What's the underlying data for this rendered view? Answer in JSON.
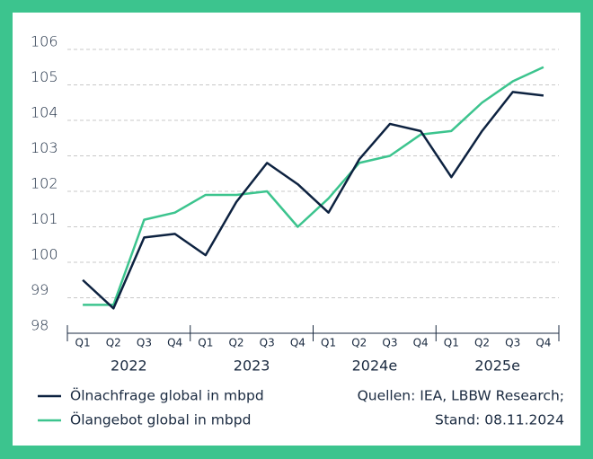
{
  "chart_data": {
    "type": "line",
    "categories": [
      "Q1",
      "Q2",
      "Q3",
      "Q4",
      "Q1",
      "Q2",
      "Q3",
      "Q4",
      "Q1",
      "Q2",
      "Q3",
      "Q4",
      "Q1",
      "Q2",
      "Q3",
      "Q4"
    ],
    "x_groups": [
      "2022",
      "2023",
      "2024e",
      "2025e"
    ],
    "series": [
      {
        "name": "Ölnachfrage global in mbpd",
        "color": "#0d2240",
        "values": [
          99.5,
          98.7,
          100.7,
          100.8,
          100.2,
          101.7,
          102.8,
          102.2,
          101.4,
          102.9,
          103.9,
          103.7,
          102.4,
          103.7,
          104.8,
          104.7
        ]
      },
      {
        "name": "Ölangebot global in mbpd",
        "color": "#3cc48e",
        "values": [
          98.8,
          98.8,
          101.2,
          101.4,
          101.9,
          101.9,
          102.0,
          101.0,
          101.8,
          102.8,
          103.0,
          103.6,
          103.7,
          104.5,
          105.1,
          105.5
        ]
      }
    ],
    "ylim": [
      98,
      106
    ],
    "yticks": [
      98,
      99,
      100,
      101,
      102,
      103,
      104,
      105,
      106
    ],
    "grid": true,
    "source": [
      "Quellen: IEA, LBBW Research;",
      "Stand: 08.11.2024"
    ]
  }
}
